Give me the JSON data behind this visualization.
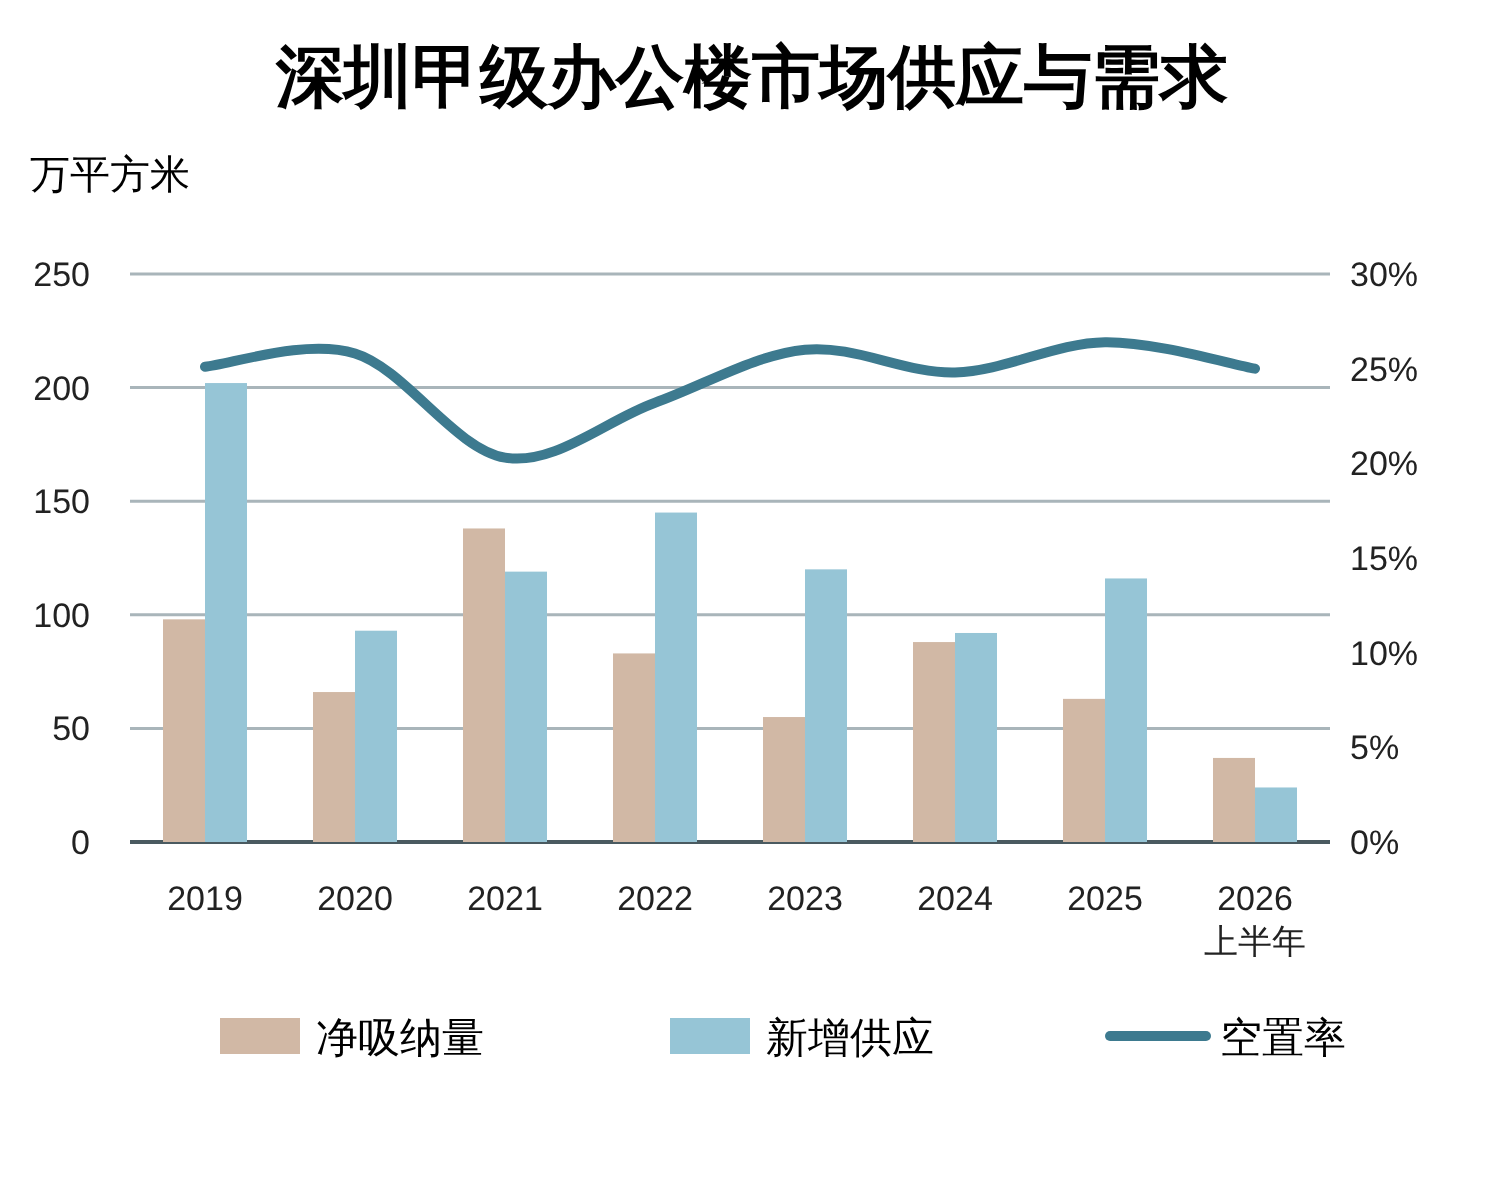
{
  "chart_data": {
    "type": "bar",
    "title": "深圳甲级办公楼市场供应与需求",
    "ylabel": "万平方米",
    "categories": [
      "2019",
      "2020",
      "2021",
      "2022",
      "2023",
      "2024",
      "2025",
      "2026\n上半年"
    ],
    "series": [
      {
        "name": "净吸纳量",
        "color": "#d1b8a5",
        "values": [
          98,
          66,
          138,
          83,
          55,
          88,
          63,
          37
        ]
      },
      {
        "name": "新增供应",
        "color": "#96c5d6",
        "values": [
          202,
          93,
          119,
          145,
          120,
          92,
          116,
          24
        ]
      },
      {
        "name": "空置率",
        "type": "line",
        "axis": "y2",
        "color": "#3d7a8f",
        "values": [
          25.1,
          25.8,
          20.3,
          23.2,
          26.0,
          24.8,
          26.4,
          25.0
        ]
      }
    ],
    "ylim": [
      0,
      250
    ],
    "yticks": [
      0,
      50,
      100,
      150,
      200,
      250
    ],
    "y2lim": [
      0,
      30
    ],
    "y2ticks": [
      {
        "value": 0,
        "label": "0%"
      },
      {
        "value": 5,
        "label": "5%"
      },
      {
        "value": 10,
        "label": "10%"
      },
      {
        "value": 15,
        "label": "15%"
      },
      {
        "value": 20,
        "label": "20%"
      },
      {
        "value": 25,
        "label": "25%"
      },
      {
        "value": 30,
        "label": "30%"
      }
    ],
    "grid": "y",
    "legend": "bottom"
  }
}
